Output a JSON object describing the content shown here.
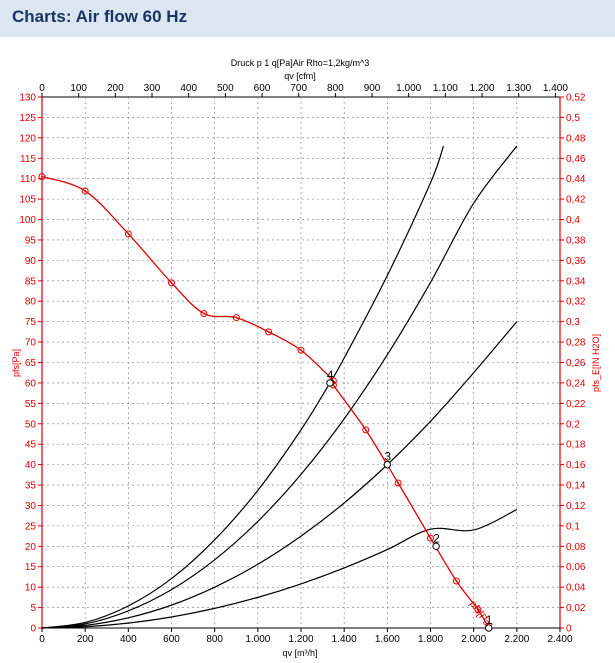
{
  "header": {
    "title": "Charts: Air flow 60 Hz"
  },
  "chart_data": {
    "type": "line",
    "subtitle": "Druck p 1 q[Pa]Air Rho=1,2kg/m^3",
    "x_bottom": {
      "label": "qv [m³/h]",
      "min": 0,
      "max": 2400,
      "ticks": [
        0,
        200,
        400,
        600,
        800,
        1000,
        1200,
        1400,
        1600,
        1800,
        2000,
        2200,
        2400
      ],
      "tick_labels": [
        "0",
        "200",
        "400",
        "600",
        "800",
        "1.000",
        "1.200",
        "1.400",
        "1.600",
        "1.800",
        "2.000",
        "2.200",
        "2.400"
      ]
    },
    "x_top": {
      "label": "qv [cfm]",
      "ticks": [
        0,
        100,
        200,
        300,
        400,
        500,
        600,
        700,
        800,
        900,
        1000,
        1100,
        1200,
        1300,
        1400
      ],
      "tick_labels": [
        "0",
        "100",
        "200",
        "300",
        "400",
        "500",
        "600",
        "700",
        "800",
        "900",
        "1.000",
        "1.100",
        "1.200",
        "1.300",
        "1.400"
      ]
    },
    "y_left": {
      "label": "pfs[Pa]",
      "min": 0,
      "max": 130,
      "step": 5
    },
    "y_right": {
      "label": "pfs_E[IN H2O]",
      "min": 0,
      "max": 0.52,
      "step": 0.02,
      "tick_labels": [
        "0",
        "0,02",
        "0,04",
        "0,06",
        "0,08",
        "0,1",
        "0,12",
        "0,14",
        "0,16",
        "0,18",
        "0,2",
        "0,22",
        "0,24",
        "0,26",
        "0,28",
        "0,3",
        "0,32",
        "0,34",
        "0,36",
        "0,38",
        "0,4",
        "0,42",
        "0,44",
        "0,46",
        "0,48",
        "0,5",
        "0,52"
      ]
    },
    "fan_curve": {
      "name": "pfs[Pa]",
      "color": "#e00000",
      "x": [
        0,
        200,
        400,
        600,
        750,
        900,
        1050,
        1200,
        1350,
        1350,
        1500,
        1650,
        1800,
        1920,
        2020,
        2070
      ],
      "y": [
        110.5,
        107,
        96.5,
        84.5,
        77,
        76,
        72.5,
        68,
        60.5,
        59.5,
        48.5,
        35.5,
        22,
        11.5,
        4.5,
        0
      ]
    },
    "system_curves": [
      {
        "name": "1",
        "color": "#000000",
        "x": [
          0,
          200,
          400,
          600,
          800,
          1000,
          1200,
          1400,
          1600,
          1800,
          1826,
          2000,
          2200
        ],
        "y": [
          0,
          0.3,
          1.2,
          2.7,
          4.8,
          7.5,
          10.8,
          14.7,
          19.2,
          24.2,
          20,
          24,
          29
        ]
      },
      {
        "name": "2",
        "color": "#000000",
        "x": [
          0,
          200,
          400,
          600,
          800,
          1000,
          1200,
          1400,
          1600,
          1800,
          2000,
          2200
        ],
        "y": [
          0,
          1,
          4.2,
          9.4,
          16.7,
          26.1,
          37.6,
          51.2,
          66.9,
          84.6,
          104,
          118
        ]
      },
      {
        "name": "3",
        "color": "#000000",
        "x": [
          0,
          200,
          400,
          600,
          800,
          1000,
          1200,
          1400,
          1600,
          1800,
          2000,
          2200
        ],
        "y": [
          0,
          0.64,
          2.5,
          5.6,
          10,
          15.6,
          22.5,
          30.6,
          40,
          50.6,
          62.5,
          75
        ]
      },
      {
        "name": "4",
        "color": "#000000",
        "x": [
          0,
          200,
          400,
          600,
          800,
          1000,
          1200,
          1334,
          1400,
          1600,
          1800,
          1860
        ],
        "y": [
          0,
          1.35,
          5.4,
          12.1,
          21.6,
          33.7,
          48.5,
          60,
          66.1,
          86.3,
          109,
          118
        ]
      }
    ],
    "operating_points": [
      {
        "label": "1",
        "x": 2070,
        "y": 0
      },
      {
        "label": "2",
        "x": 1826,
        "y": 20
      },
      {
        "label": "3",
        "x": 1600,
        "y": 40
      },
      {
        "label": "4",
        "x": 1334,
        "y": 60
      }
    ],
    "fan_curve_label": "pfs[Pa]"
  }
}
